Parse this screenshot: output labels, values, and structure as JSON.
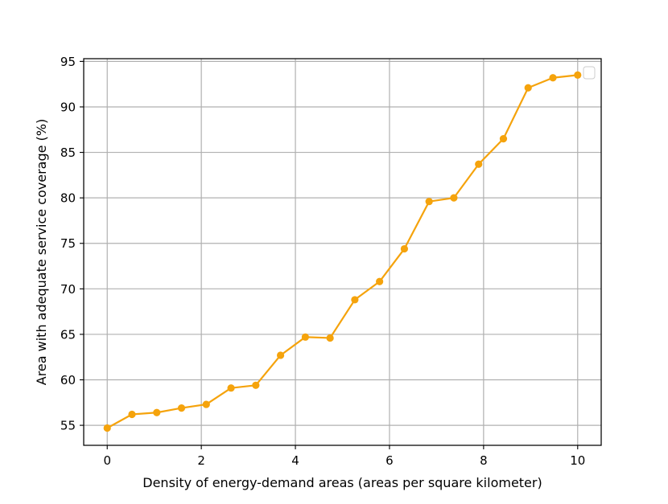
{
  "chart_data": {
    "type": "line",
    "title": "",
    "xlabel": "Density of energy-demand areas (areas per square kilometer)",
    "ylabel": "Area with adequate service coverage (%)",
    "xlim": [
      -0.5,
      10.5
    ],
    "ylim": [
      52.8,
      95.3
    ],
    "xticks": [
      0,
      2,
      4,
      6,
      8,
      10
    ],
    "yticks": [
      55,
      60,
      65,
      70,
      75,
      80,
      85,
      90,
      95
    ],
    "xtick_labels": [
      "0",
      "2",
      "4",
      "6",
      "8",
      "10"
    ],
    "ytick_labels": [
      "55",
      "60",
      "65",
      "70",
      "75",
      "80",
      "85",
      "90",
      "95"
    ],
    "grid": true,
    "legend": {
      "placement": "top-right",
      "entries": []
    },
    "line_color": "#f5a30c",
    "x": [
      0,
      0.526,
      1.053,
      1.579,
      2.105,
      2.632,
      3.158,
      3.684,
      4.211,
      4.737,
      5.263,
      5.789,
      6.316,
      6.842,
      7.368,
      7.895,
      8.421,
      8.947,
      9.474,
      10
    ],
    "series": [
      {
        "values": [
          54.7,
          56.2,
          56.4,
          56.9,
          57.3,
          59.1,
          59.4,
          62.7,
          64.7,
          64.6,
          68.8,
          70.8,
          74.4,
          79.6,
          80.0,
          83.7,
          86.5,
          92.1,
          93.2,
          93.5
        ]
      }
    ]
  }
}
